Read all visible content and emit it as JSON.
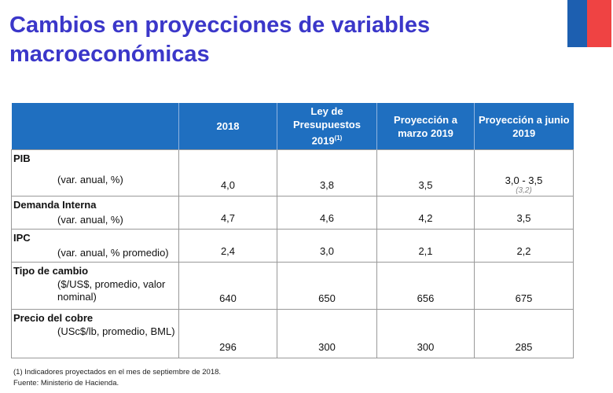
{
  "title_line1": "Cambios en proyecciones de variables",
  "title_line2": "macroeconómicas",
  "flag_colors": [
    "#1d5fb0",
    "#ef4343"
  ],
  "header_color": "#1f6fc0",
  "table": {
    "columns": [
      "2018",
      "Ley de Presupuestos 2019",
      "Proyección a marzo 2019",
      "Proyección a junio 2019"
    ],
    "col2_sup": "(1)",
    "rows": [
      {
        "name": "PIB",
        "unit": "(var. anual, %)",
        "values": [
          "4,0",
          "3,8",
          "3,5",
          "3,0 - 3,5"
        ],
        "alt": "(3,2)"
      },
      {
        "name": "Demanda Interna",
        "unit": "(var. anual, %)",
        "values": [
          "4,7",
          "4,6",
          "4,2",
          "3,5"
        ]
      },
      {
        "name": "IPC",
        "unit": "(var. anual, % promedio)",
        "values": [
          "2,4",
          "3,0",
          "2,1",
          "2,2"
        ]
      },
      {
        "name": "Tipo de cambio",
        "unit": "($/US$, promedio, valor nominal)",
        "values": [
          "640",
          "650",
          "656",
          "675"
        ]
      },
      {
        "name": "Precio del cobre",
        "unit": "(USc$/lb, promedio, BML)",
        "values": [
          "296",
          "300",
          "300",
          "285"
        ]
      }
    ]
  },
  "footnote": "(1) Indicadores proyectados en el mes de septiembre de 2018.",
  "source": "Fuente: Ministerio de Hacienda."
}
